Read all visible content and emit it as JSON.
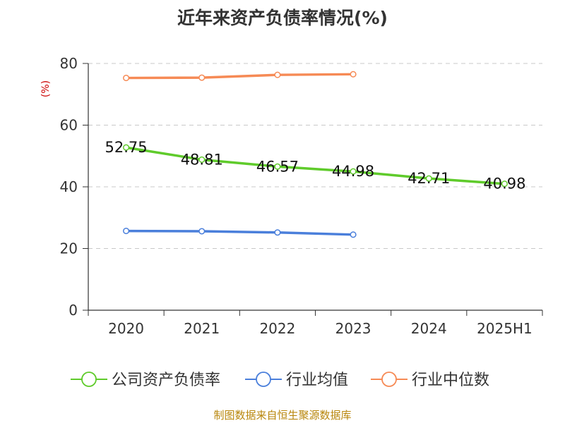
{
  "colors": {
    "text": "#333333",
    "axis": "#333333",
    "grid": "#c8c8c8",
    "unit": "#cc0000",
    "source": "#b8860b"
  },
  "chart_data": {
    "type": "line",
    "title": "近年来资产负债率情况(%)",
    "ylabel": "(%)",
    "xlabel": "",
    "categories": [
      "2020",
      "2021",
      "2022",
      "2023",
      "2024",
      "2025H1"
    ],
    "ylim": [
      0,
      80
    ],
    "yticks": [
      0,
      20,
      40,
      60,
      80
    ],
    "grid": true,
    "legend_position": "bottom",
    "series": [
      {
        "name": "公司资产负债率",
        "color": "#5fcb2b",
        "values": [
          52.75,
          48.81,
          46.57,
          44.98,
          42.71,
          40.98
        ],
        "labels": [
          "52.75",
          "48.81",
          "46.57",
          "44.98",
          "42.71",
          "40.98"
        ],
        "show_labels": true
      },
      {
        "name": "行业均值",
        "color": "#4a7fdb",
        "values": [
          25.7,
          25.6,
          25.2,
          24.5,
          null,
          null
        ],
        "show_labels": false
      },
      {
        "name": "行业中位数",
        "color": "#f68a55",
        "values": [
          75.3,
          75.4,
          76.3,
          76.5,
          null,
          null
        ],
        "show_labels": false
      }
    ]
  },
  "source": "制图数据来自恒生聚源数据库"
}
